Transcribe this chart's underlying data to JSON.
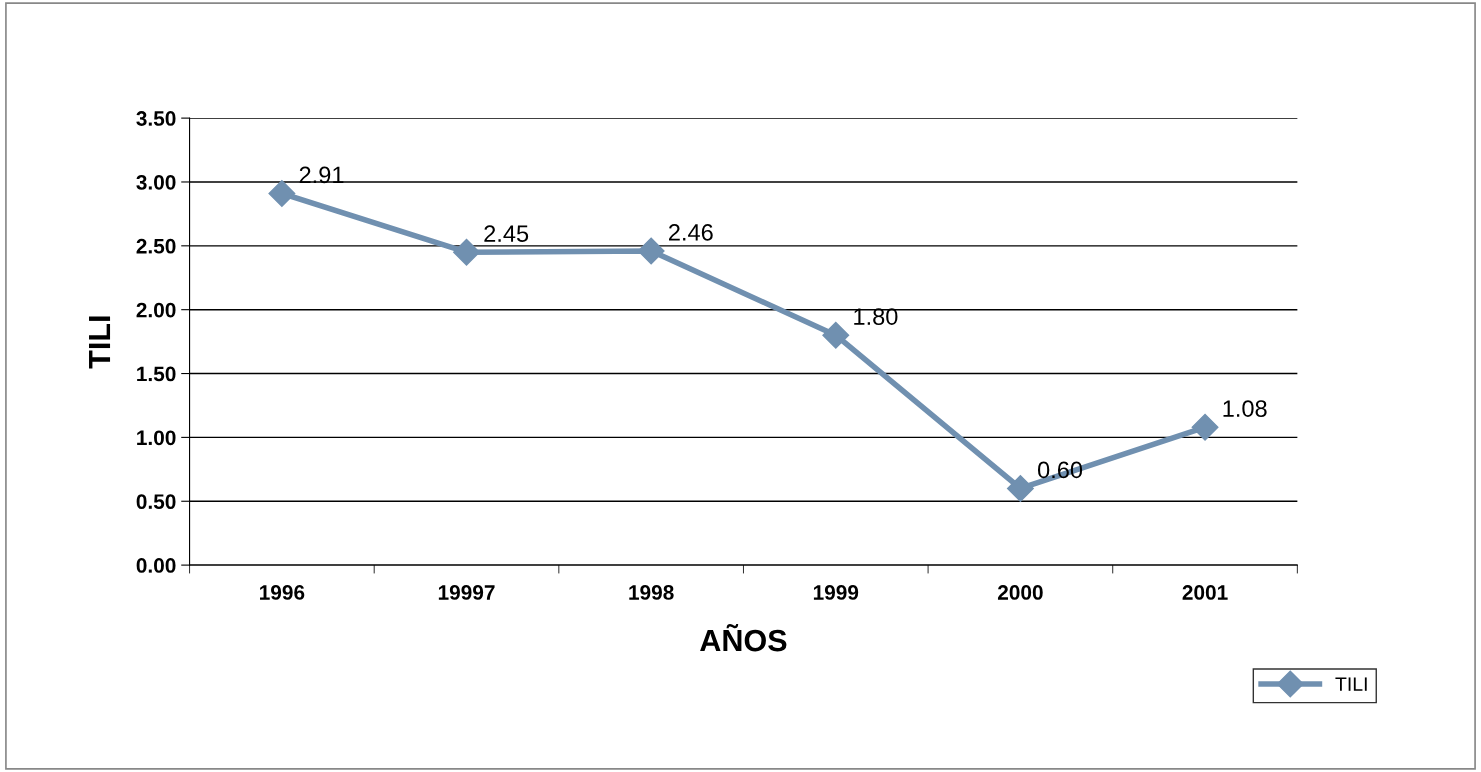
{
  "chart_data": {
    "type": "line",
    "xlabel": "AÑOS",
    "ylabel": "TILI",
    "categories": [
      "1996",
      "19997",
      "1998",
      "1999",
      "2000",
      "2001"
    ],
    "series": [
      {
        "name": "TILI",
        "color": "#7090b0",
        "values": [
          2.91,
          2.45,
          2.46,
          1.8,
          0.6,
          1.08
        ],
        "value_labels": [
          "2.91",
          "2.45",
          "2.46",
          "1.80",
          "0.60",
          "1.08"
        ]
      }
    ],
    "ylim": [
      0,
      3.5
    ],
    "yticks": [
      {
        "value": 0,
        "label": "0.00"
      },
      {
        "value": 0.5,
        "label": "0.50"
      },
      {
        "value": 1,
        "label": "1.00"
      },
      {
        "value": 1.5,
        "label": "1.50"
      },
      {
        "value": 2,
        "label": "2.00"
      },
      {
        "value": 2.5,
        "label": "2.50"
      },
      {
        "value": 3,
        "label": "3.00"
      },
      {
        "value": 3.5,
        "label": "3.50"
      }
    ],
    "grid": "y",
    "legend": "bottom right",
    "marker": "diamond",
    "line_style": "solid"
  }
}
